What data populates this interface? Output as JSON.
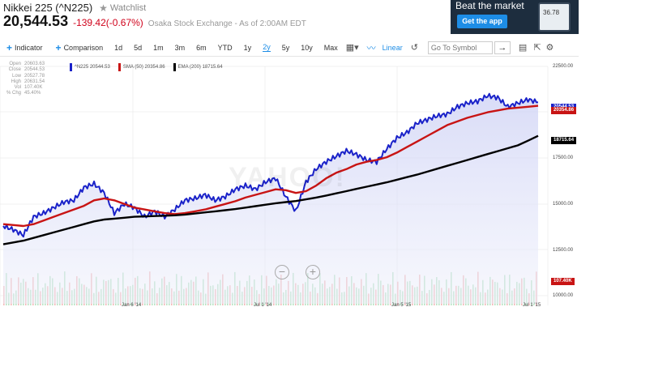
{
  "header": {
    "name": "Nikkei 225 (^N225)",
    "watchlist": "Watchlist",
    "price": "20,544.53",
    "change": "-139.42(-0.67%)",
    "exchange": "Osaka Stock Exchange - As of 2:00AM EDT"
  },
  "ad": {
    "title": "Beat the market",
    "button": "Get the app",
    "phone_value": "36.78"
  },
  "toolbar": {
    "indicator": "Indicator",
    "comparison": "Comparison",
    "ranges": [
      "1d",
      "5d",
      "1m",
      "3m",
      "6m",
      "YTD",
      "1y",
      "2y",
      "5y",
      "10y",
      "Max"
    ],
    "active_range": "2y",
    "scale": "Linear",
    "symbol_placeholder": "Go To Symbol"
  },
  "stats": [
    {
      "label": "Open",
      "value": "20603.63"
    },
    {
      "label": "Close",
      "value": "20544.53"
    },
    {
      "label": "Low",
      "value": "20527.78"
    },
    {
      "label": "High",
      "value": "20631.54"
    },
    {
      "label": "Vol",
      "value": "107.40K"
    },
    {
      "label": "% Chg",
      "value": "45.40%"
    }
  ],
  "legend": [
    {
      "label": "^N225 20544.53",
      "color": "#1a22c9"
    },
    {
      "label": "SMA (50) 20354.86",
      "color": "#c81414"
    },
    {
      "label": "EMA (200) 18715.64",
      "color": "#000000"
    }
  ],
  "watermark": "YAHOO!",
  "markers": {
    "price": "20544.53",
    "sma": "20354.86",
    "ema": "18715.64",
    "volume": "107.40K"
  },
  "chart_data": {
    "type": "line",
    "yticks": [
      "22500.00",
      "20000.00",
      "17500.00",
      "15000.00",
      "12500.00",
      "10000.00"
    ],
    "ylim": [
      10000,
      22500
    ],
    "xticks": [
      "Jan 6 '14",
      "Jul 1 '14",
      "Jan 5 '15",
      "Jul 1 '15"
    ],
    "series": [
      {
        "name": "^N225",
        "color": "#1a22c9",
        "values": [
          13800,
          13600,
          13300,
          14300,
          14500,
          14800,
          15100,
          15200,
          15900,
          16100,
          15600,
          14500,
          15000,
          14800,
          14300,
          14600,
          14300,
          14700,
          15200,
          15300,
          15500,
          15200,
          15400,
          15800,
          16000,
          15800,
          16200,
          16400,
          15400,
          14600,
          16200,
          16900,
          17300,
          17600,
          17900,
          17700,
          17400,
          17300,
          18000,
          18600,
          18900,
          19400,
          19600,
          19800,
          19900,
          20300,
          20500,
          20600,
          20900,
          20800,
          20300,
          20500,
          20700,
          20544
        ]
      },
      {
        "name": "SMA (50)",
        "color": "#c81414",
        "values": [
          13900,
          13850,
          13800,
          13900,
          14100,
          14300,
          14500,
          14700,
          14900,
          15200,
          15300,
          15200,
          15000,
          14800,
          14700,
          14600,
          14500,
          14450,
          14500,
          14600,
          14700,
          14850,
          15000,
          15150,
          15350,
          15500,
          15650,
          15800,
          15750,
          15600,
          15700,
          16000,
          16400,
          16700,
          16900,
          17150,
          17300,
          17400,
          17550,
          17800,
          18100,
          18400,
          18700,
          19000,
          19300,
          19500,
          19700,
          19850,
          20000,
          20100,
          20200,
          20250,
          20300,
          20354
        ]
      },
      {
        "name": "EMA (200)",
        "color": "#000000",
        "values": [
          12800,
          12900,
          13000,
          13150,
          13300,
          13450,
          13600,
          13750,
          13900,
          14050,
          14150,
          14200,
          14250,
          14300,
          14320,
          14340,
          14360,
          14380,
          14420,
          14480,
          14540,
          14600,
          14660,
          14720,
          14800,
          14880,
          14960,
          15040,
          15100,
          15160,
          15250,
          15350,
          15460,
          15580,
          15700,
          15820,
          15940,
          16060,
          16180,
          16320,
          16460,
          16600,
          16760,
          16920,
          17080,
          17240,
          17400,
          17560,
          17720,
          17880,
          18040,
          18200,
          18450,
          18715
        ]
      }
    ]
  }
}
